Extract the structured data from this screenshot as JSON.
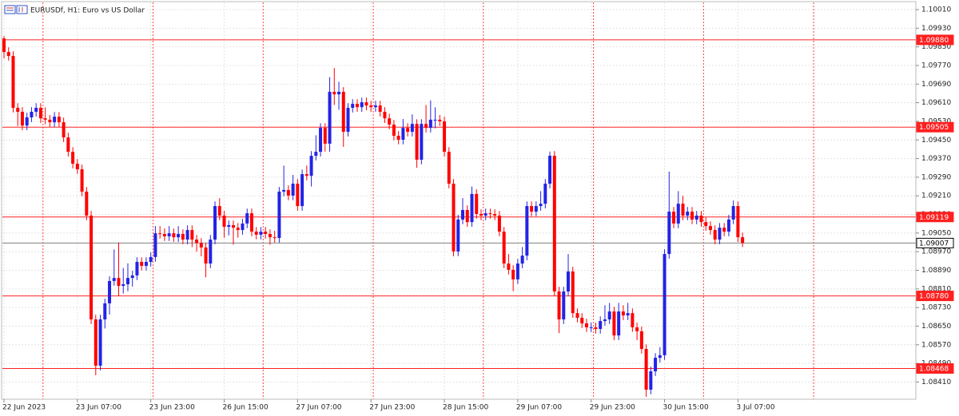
{
  "chart_data": {
    "type": "candlestick",
    "title": "EURUSDf, H1:  Euro vs US Dollar",
    "categories": [
      "22 Jun 2023",
      null,
      null,
      null,
      null,
      null,
      null,
      null,
      null,
      null,
      null,
      null,
      null,
      null,
      null,
      null,
      "23 Jun 07:00",
      null,
      null,
      null,
      null,
      null,
      null,
      null,
      null,
      null,
      null,
      null,
      null,
      null,
      null,
      null,
      "23 Jun 23:00",
      null,
      null,
      null,
      null,
      null,
      null,
      null,
      null,
      null,
      null,
      null,
      null,
      null,
      null,
      null,
      "26 Jun 15:00",
      null,
      null,
      null,
      null,
      null,
      null,
      null,
      null,
      null,
      null,
      null,
      null,
      null,
      null,
      null,
      "27 Jun 07:00",
      null,
      null,
      null,
      null,
      null,
      null,
      null,
      null,
      null,
      null,
      null,
      null,
      null,
      null,
      null,
      "27 Jun 23:00",
      null,
      null,
      null,
      null,
      null,
      null,
      null,
      null,
      null,
      null,
      null,
      null,
      null,
      null,
      null,
      "28 Jun 15:00",
      null,
      null,
      null,
      null,
      null,
      null,
      null,
      null,
      null,
      null,
      null,
      null,
      null,
      null,
      null,
      "29 Jun 07:00",
      null,
      null,
      null,
      null,
      null,
      null,
      null,
      null,
      null,
      null,
      null,
      null,
      null,
      null,
      null,
      "29 Jun 23:00",
      null,
      null,
      null,
      null,
      null,
      null,
      null,
      null,
      null,
      null,
      null,
      null,
      null,
      null,
      null,
      "30 Jun 15:00",
      null,
      null,
      null,
      null,
      null,
      null,
      null,
      null,
      null,
      null,
      null,
      null,
      null,
      null,
      null,
      "3 Jul 07:00",
      null
    ],
    "open": [
      1.09886,
      1.09828,
      1.09811,
      1.09588,
      1.09571,
      1.09512,
      1.09547,
      1.09571,
      1.09588,
      1.09543,
      1.09537,
      1.09526,
      1.0955,
      1.09526,
      1.09461,
      1.09399,
      1.09348,
      1.09324,
      1.09228,
      1.09125,
      1.08679,
      1.0848,
      1.08679,
      1.08748,
      1.08844,
      1.08857,
      1.08823,
      1.0883,
      1.08857,
      1.08868,
      1.08926,
      1.08909,
      1.08926,
      1.08947,
      1.09049,
      1.09046,
      1.09036,
      1.09049,
      1.09032,
      1.09046,
      1.09022,
      1.09063,
      1.09022,
      1.09008,
      1.08988,
      1.08919,
      1.09022,
      1.09166,
      1.09125,
      1.09077,
      1.09084,
      1.09073,
      1.09063,
      1.09091,
      1.09135,
      1.09056,
      1.09043,
      1.09056,
      1.09046,
      1.09032,
      1.09029,
      1.09228,
      1.09235,
      1.09211,
      1.09262,
      1.09166,
      1.09303,
      1.09296,
      1.09382,
      1.09399,
      1.09502,
      1.09434,
      1.09657,
      1.09646,
      1.09657,
      1.09485,
      1.09588,
      1.09605,
      1.09591,
      1.09612,
      1.09598,
      1.09591,
      1.09598,
      1.09571,
      1.09543,
      1.09516,
      1.09468,
      1.09451,
      1.09502,
      1.09485,
      1.09519,
      1.09365,
      1.09519,
      1.09502,
      1.09537,
      1.09537,
      1.0953,
      1.09399,
      1.09262,
      1.08971,
      1.09108,
      1.09149,
      1.09097,
      1.09218,
      1.09132,
      1.09125,
      1.09135,
      1.09132,
      1.09125,
      1.09056,
      1.08919,
      1.08892,
      1.08851,
      1.08919,
      1.08953,
      1.09166,
      1.09142,
      1.09166,
      1.09176,
      1.09262,
      1.09382,
      1.08799,
      1.08679,
      1.08799,
      1.08885,
      1.08706,
      1.08686,
      1.08662,
      1.08645,
      1.08645,
      1.08638,
      1.08672,
      1.08679,
      1.08713,
      1.0861,
      1.08713,
      1.08696,
      1.08706,
      1.08645,
      1.08628,
      1.08552,
      1.08377,
      1.08456,
      1.08514,
      1.08525,
      1.0896,
      1.09142,
      1.09091,
      1.09176,
      1.09125,
      1.09142,
      1.09108,
      1.09125,
      1.09097,
      1.0908,
      1.09063,
      1.09022,
      1.09073,
      1.09056,
      1.09108,
      1.09166,
      1.09032
    ],
    "high": [
      1.09896,
      1.09848,
      1.09831,
      1.09608,
      1.09591,
      1.09567,
      1.09591,
      1.09608,
      1.09608,
      1.0959,
      1.09557,
      1.0957,
      1.0957,
      1.09546,
      1.09481,
      1.09419,
      1.09368,
      1.09344,
      1.09248,
      1.09145,
      1.08699,
      1.08699,
      1.08768,
      1.08864,
      1.0898,
      1.0901,
      1.089,
      1.0892,
      1.08888,
      1.08946,
      1.08946,
      1.08946,
      1.08967,
      1.0908,
      1.0908,
      1.0907,
      1.0908,
      1.09069,
      1.0908,
      1.09066,
      1.09083,
      1.09083,
      1.09042,
      1.09028,
      1.09008,
      1.09042,
      1.09186,
      1.092,
      1.09145,
      1.09104,
      1.09104,
      1.09093,
      1.09111,
      1.09155,
      1.09155,
      1.09076,
      1.09076,
      1.09076,
      1.09066,
      1.0906,
      1.09248,
      1.0934,
      1.09255,
      1.093,
      1.09282,
      1.09323,
      1.0934,
      1.09402,
      1.0947,
      1.09522,
      1.09522,
      1.0972,
      1.09759,
      1.097,
      1.09677,
      1.09608,
      1.09625,
      1.09625,
      1.09632,
      1.09632,
      1.09618,
      1.09618,
      1.09618,
      1.09591,
      1.09563,
      1.09536,
      1.09488,
      1.0954,
      1.09522,
      1.0956,
      1.09539,
      1.09539,
      1.096,
      1.0962,
      1.0959,
      1.09557,
      1.0955,
      1.09419,
      1.09282,
      1.09128,
      1.092,
      1.09169,
      1.0925,
      1.09238,
      1.09152,
      1.09155,
      1.09155,
      1.09152,
      1.09145,
      1.09076,
      1.0896,
      1.08912,
      1.08939,
      1.0899,
      1.09186,
      1.09186,
      1.09186,
      1.0923,
      1.09282,
      1.094,
      1.09402,
      1.08819,
      1.08819,
      1.0896,
      1.08905,
      1.08726,
      1.08706,
      1.08682,
      1.08665,
      1.08665,
      1.08692,
      1.0874,
      1.0875,
      1.08733,
      1.0875,
      1.0874,
      1.0875,
      1.08726,
      1.08665,
      1.08648,
      1.08572,
      1.08476,
      1.08534,
      1.0856,
      1.0898,
      1.09314,
      1.09162,
      1.0923,
      1.0921,
      1.09162,
      1.09162,
      1.09145,
      1.09145,
      1.09117,
      1.091,
      1.09083,
      1.09093,
      1.09093,
      1.09128,
      1.0919,
      1.09186,
      1.09052
    ],
    "low": [
      1.098,
      1.09791,
      1.09568,
      1.0951,
      1.09492,
      1.09492,
      1.09527,
      1.09551,
      1.09523,
      1.09517,
      1.09506,
      1.09506,
      1.09506,
      1.09441,
      1.09379,
      1.09328,
      1.09304,
      1.09208,
      1.09105,
      1.08659,
      1.08439,
      1.0846,
      1.0864,
      1.087,
      1.08824,
      1.0878,
      1.0879,
      1.088,
      1.0882,
      1.08848,
      1.08889,
      1.08889,
      1.08906,
      1.08927,
      1.09026,
      1.09016,
      1.09016,
      1.09012,
      1.09012,
      1.09002,
      1.09002,
      1.0899,
      1.0897,
      1.0895,
      1.0886,
      1.08899,
      1.09002,
      1.09105,
      1.0903,
      1.0904,
      1.09,
      1.0903,
      1.09043,
      1.09071,
      1.09036,
      1.09023,
      1.09023,
      1.09026,
      1.09,
      1.09009,
      1.09009,
      1.09208,
      1.09191,
      1.09191,
      1.09146,
      1.09146,
      1.09276,
      1.0925,
      1.09362,
      1.09379,
      1.094,
      1.094,
      1.096,
      1.0958,
      1.0942,
      1.09465,
      1.09568,
      1.09571,
      1.09571,
      1.09578,
      1.09571,
      1.09571,
      1.09551,
      1.09523,
      1.09496,
      1.09448,
      1.09431,
      1.09431,
      1.09465,
      1.09465,
      1.0933,
      1.09345,
      1.09482,
      1.09482,
      1.095,
      1.0951,
      1.09379,
      1.09242,
      1.0895,
      1.08951,
      1.09088,
      1.09077,
      1.09077,
      1.09112,
      1.09105,
      1.09105,
      1.09112,
      1.09105,
      1.09036,
      1.08899,
      1.08872,
      1.088,
      1.08831,
      1.08899,
      1.08933,
      1.09122,
      1.09122,
      1.09146,
      1.09156,
      1.09242,
      1.08779,
      1.0862,
      1.08659,
      1.08779,
      1.08686,
      1.08666,
      1.08642,
      1.08625,
      1.08625,
      1.08618,
      1.08618,
      1.08652,
      1.08659,
      1.0859,
      1.0859,
      1.08676,
      1.08676,
      1.08625,
      1.0859,
      1.08532,
      1.08346,
      1.08357,
      1.08436,
      1.08494,
      1.08505,
      1.0894,
      1.09071,
      1.09071,
      1.09105,
      1.09105,
      1.09088,
      1.09088,
      1.09077,
      1.0906,
      1.09043,
      1.09002,
      1.09002,
      1.09036,
      1.09036,
      1.09088,
      1.09012,
      1.0899
    ],
    "close": [
      1.09828,
      1.09811,
      1.09588,
      1.09571,
      1.09512,
      1.09547,
      1.09571,
      1.09588,
      1.09543,
      1.09537,
      1.09526,
      1.0955,
      1.09526,
      1.09461,
      1.09399,
      1.09348,
      1.09324,
      1.09228,
      1.09125,
      1.08679,
      1.0848,
      1.08679,
      1.08748,
      1.08844,
      1.08857,
      1.08823,
      1.0883,
      1.08857,
      1.08868,
      1.08926,
      1.08909,
      1.08926,
      1.08947,
      1.09049,
      1.09046,
      1.09036,
      1.09049,
      1.09032,
      1.09046,
      1.09022,
      1.09063,
      1.09022,
      1.09008,
      1.08988,
      1.08919,
      1.09022,
      1.09166,
      1.09125,
      1.09077,
      1.09084,
      1.09073,
      1.09063,
      1.09091,
      1.09135,
      1.09056,
      1.09043,
      1.09056,
      1.09046,
      1.09032,
      1.09029,
      1.09228,
      1.09235,
      1.09211,
      1.09262,
      1.09166,
      1.09303,
      1.09296,
      1.09382,
      1.09399,
      1.09502,
      1.09434,
      1.09657,
      1.09646,
      1.09657,
      1.09485,
      1.09588,
      1.09605,
      1.09591,
      1.09612,
      1.09598,
      1.09591,
      1.09598,
      1.09571,
      1.09543,
      1.09516,
      1.09468,
      1.09451,
      1.09502,
      1.09485,
      1.09519,
      1.09365,
      1.09519,
      1.09502,
      1.09537,
      1.09537,
      1.0953,
      1.09399,
      1.09262,
      1.08971,
      1.09108,
      1.09149,
      1.09097,
      1.09218,
      1.09132,
      1.09125,
      1.09135,
      1.09132,
      1.09125,
      1.09056,
      1.08919,
      1.08892,
      1.08851,
      1.08919,
      1.08953,
      1.09166,
      1.09142,
      1.09166,
      1.09176,
      1.09262,
      1.09382,
      1.08799,
      1.08679,
      1.08799,
      1.08885,
      1.08706,
      1.08686,
      1.08662,
      1.08645,
      1.08645,
      1.08638,
      1.08672,
      1.08679,
      1.08713,
      1.0861,
      1.08713,
      1.08696,
      1.08706,
      1.08645,
      1.08628,
      1.08552,
      1.08377,
      1.08456,
      1.08514,
      1.08525,
      1.0896,
      1.09142,
      1.09091,
      1.09176,
      1.09125,
      1.09142,
      1.09108,
      1.09125,
      1.09097,
      1.0908,
      1.09063,
      1.09022,
      1.09073,
      1.09056,
      1.09108,
      1.09166,
      1.09032,
      1.09008
    ],
    "up_color": "#2323e6",
    "down_color": "#ff0000",
    "ylim": [
      1.08336,
      1.10041
    ],
    "yticks": [
      {
        "value": 1.0841,
        "label": "1.08410"
      },
      {
        "value": 1.0849,
        "label": "1.08490"
      },
      {
        "value": 1.0857,
        "label": "1.08570"
      },
      {
        "value": 1.0865,
        "label": "1.08650"
      },
      {
        "value": 1.0873,
        "label": "1.08730"
      },
      {
        "value": 1.0881,
        "label": "1.08810"
      },
      {
        "value": 1.0889,
        "label": "1.08890"
      },
      {
        "value": 1.0897,
        "label": "1.08970"
      },
      {
        "value": 1.0905,
        "label": "1.09050"
      },
      {
        "value": 1.0913,
        "label": "1.09130"
      },
      {
        "value": 1.0921,
        "label": "1.09210"
      },
      {
        "value": 1.0929,
        "label": "1.09290"
      },
      {
        "value": 1.0937,
        "label": "1.09370"
      },
      {
        "value": 1.0945,
        "label": "1.09450"
      },
      {
        "value": 1.0953,
        "label": "1.09530"
      },
      {
        "value": 1.0961,
        "label": "1.09610"
      },
      {
        "value": 1.0969,
        "label": "1.09690"
      },
      {
        "value": 1.0977,
        "label": "1.09770"
      },
      {
        "value": 1.0985,
        "label": "1.09850"
      },
      {
        "value": 1.0993,
        "label": "1.09930"
      },
      {
        "value": 1.1001,
        "label": "1.10010"
      }
    ],
    "grid": true,
    "levels": [
      {
        "value": 1.0988,
        "label": "1.09880"
      },
      {
        "value": 1.09505,
        "label": "1.09505"
      },
      {
        "value": 1.09119,
        "label": "1.09119"
      },
      {
        "value": 1.0878,
        "label": "1.08780"
      },
      {
        "value": 1.08468,
        "label": "1.08468"
      }
    ],
    "level_color": "#ff2020",
    "last_price": {
      "value": 1.09007,
      "label": "1.09007"
    },
    "last_price_color": "#808080"
  }
}
